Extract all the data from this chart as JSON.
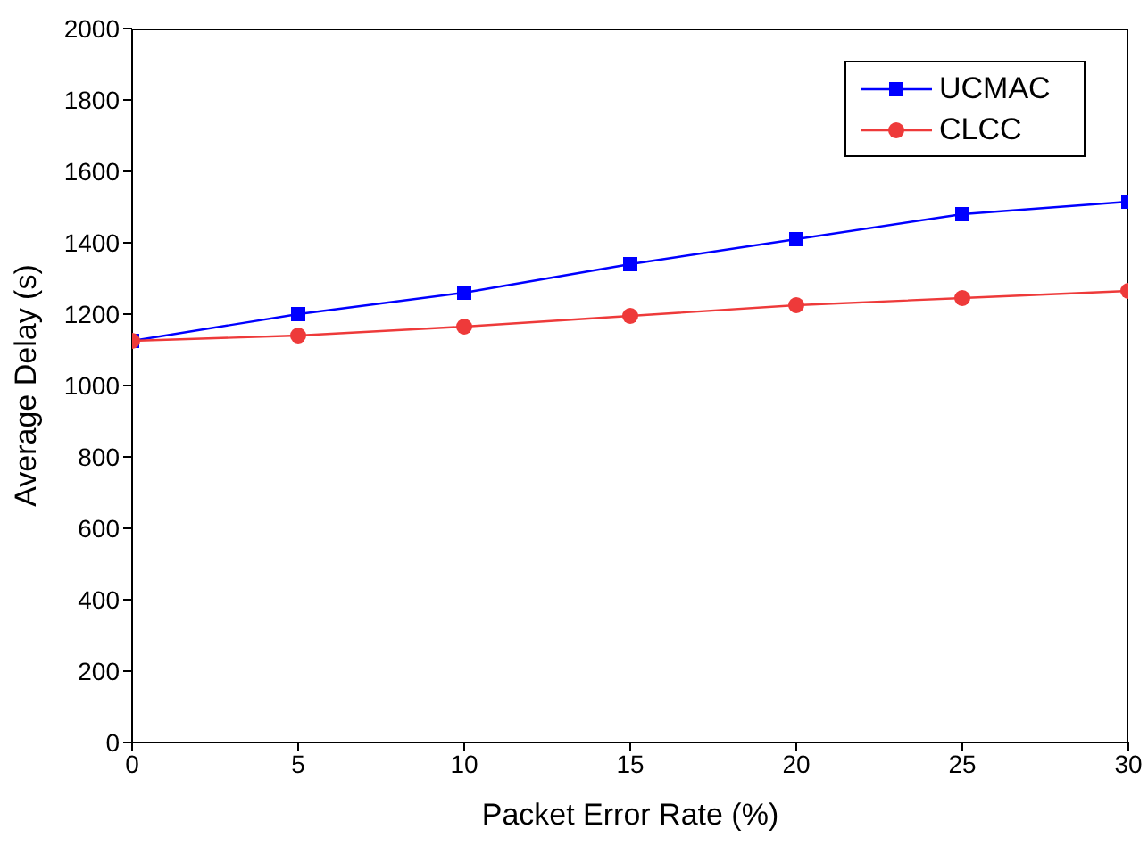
{
  "chart_data": {
    "type": "line",
    "xlabel": "Packet Error Rate (%)",
    "ylabel": "Average Delay (s)",
    "x": [
      0,
      5,
      10,
      15,
      20,
      25,
      30
    ],
    "series": [
      {
        "name": "UCMAC",
        "color": "#0000ff",
        "marker": "square",
        "values": [
          1125,
          1200,
          1260,
          1340,
          1410,
          1480,
          1515
        ]
      },
      {
        "name": "CLCC",
        "color": "#ee3a3a",
        "marker": "circle",
        "values": [
          1125,
          1140,
          1165,
          1195,
          1225,
          1245,
          1265
        ]
      }
    ],
    "xlim": [
      0,
      30
    ],
    "xticks": [
      0,
      5,
      10,
      15,
      20,
      25,
      30
    ],
    "ylim": [
      0,
      2000
    ],
    "yticks": [
      0,
      200,
      400,
      600,
      800,
      1000,
      1200,
      1400,
      1600,
      1800,
      2000
    ],
    "grid": false,
    "legend": "top right"
  }
}
